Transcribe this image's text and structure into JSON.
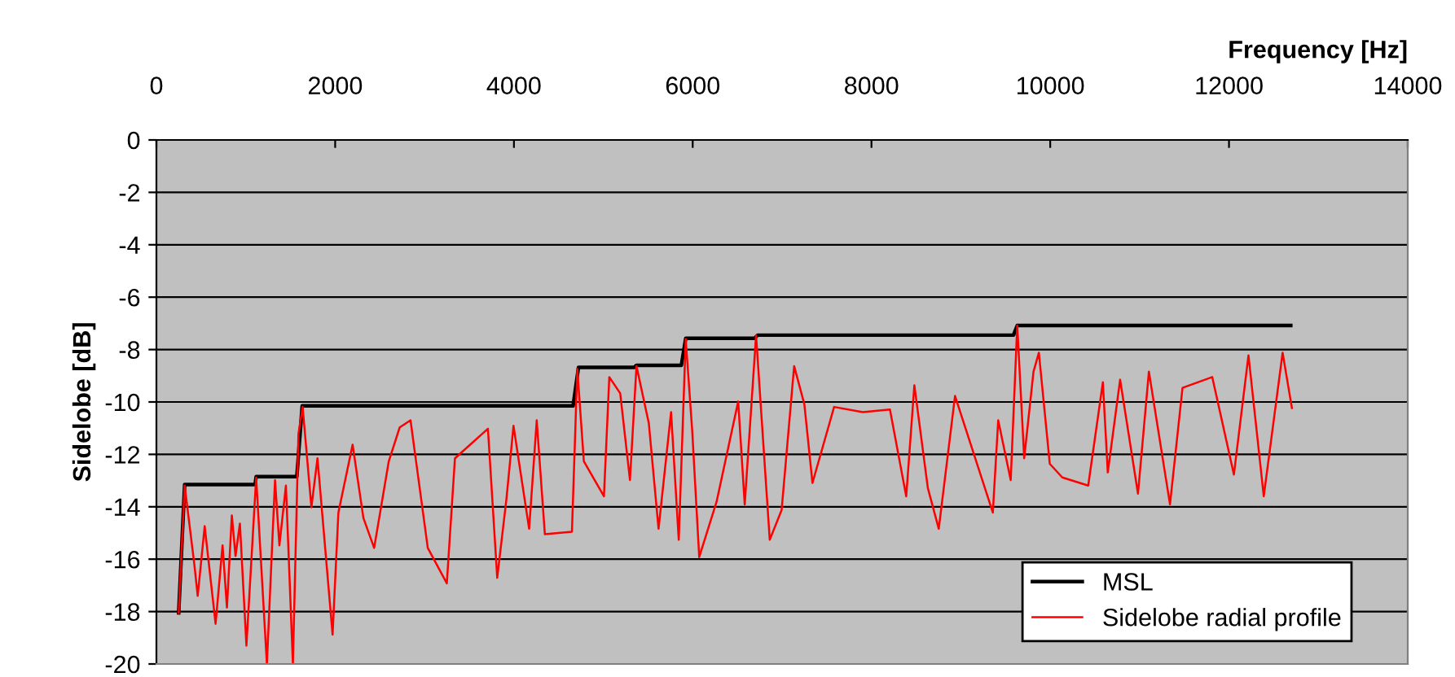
{
  "chart_data": {
    "type": "line",
    "xlabel": "Frequency [Hz]",
    "ylabel": "Sidelobe [dB]",
    "xlim": [
      0,
      14000
    ],
    "xticks": [
      0,
      2000,
      4000,
      6000,
      8000,
      10000,
      12000,
      14000
    ],
    "ylim": [
      -20,
      0
    ],
    "yticks": [
      0,
      -2,
      -4,
      -6,
      -8,
      -10,
      -12,
      -14,
      -16,
      -18,
      -20
    ],
    "grid": "y",
    "legend": "bottom right",
    "series": [
      {
        "name": "MSL",
        "color": "#000000",
        "x": [
          249,
          316,
          1104,
          1116,
          1571,
          1631,
          4662,
          4722,
          5345,
          5371,
          5873,
          5922,
          6691,
          6727,
          9589,
          9631,
          12691
        ],
        "values": [
          -18.05,
          -13.15,
          -13.15,
          -12.85,
          -12.85,
          -10.15,
          -10.15,
          -8.68,
          -8.68,
          -8.6,
          -8.6,
          -7.57,
          -7.57,
          -7.45,
          -7.45,
          -7.08,
          -7.08
        ]
      },
      {
        "name": "Sidelobe radial profile",
        "color": "#ff0000",
        "x": [
          249,
          316,
          424,
          462,
          540,
          662,
          740,
          789,
          844,
          885,
          934,
          1007,
          1116,
          1236,
          1327,
          1376,
          1449,
          1527,
          1589,
          1636,
          1734,
          1802,
          1971,
          2036,
          2195,
          2316,
          2436,
          2600,
          2722,
          2843,
          3036,
          3249,
          3340,
          3709,
          3813,
          3916,
          3995,
          4170,
          4255,
          4346,
          4649,
          4709,
          4782,
          5007,
          5067,
          5189,
          5298,
          5371,
          5509,
          5618,
          5758,
          5844,
          5922,
          5995,
          6073,
          6267,
          6509,
          6582,
          6709,
          6862,
          6995,
          7135,
          7249,
          7340,
          7582,
          7904,
          8207,
          8389,
          8480,
          8631,
          8753,
          8935,
          9358,
          9418,
          9558,
          9631,
          9709,
          9813,
          9873,
          9995,
          10135,
          10425,
          10589,
          10644,
          10782,
          10982,
          11104,
          11340,
          11480,
          11813,
          12055,
          12218,
          12389,
          12600,
          12704
        ],
        "values": [
          -18.05,
          -13.19,
          -16.19,
          -17.4,
          -14.74,
          -18.47,
          -15.47,
          -17.85,
          -14.33,
          -15.88,
          -14.64,
          -19.3,
          -12.88,
          -20,
          -12.98,
          -15.47,
          -13.19,
          -20,
          -11.22,
          -10.19,
          -14.02,
          -12.15,
          -18.88,
          -14.22,
          -11.63,
          -14.43,
          -15.57,
          -12.26,
          -10.97,
          -10.7,
          -15.57,
          -16.92,
          -12.15,
          -11.02,
          -16.71,
          -13.71,
          -10.91,
          -14.84,
          -10.7,
          -15.05,
          -14.95,
          -8.74,
          -12.26,
          -13.6,
          -9.05,
          -9.67,
          -12.98,
          -8.63,
          -10.81,
          -14.84,
          -10.39,
          -15.26,
          -7.6,
          -11.12,
          -15.92,
          -13.81,
          -9.98,
          -13.91,
          -7.45,
          -15.26,
          -14.12,
          -8.63,
          -10.08,
          -13.09,
          -10.19,
          -10.39,
          -10.29,
          -13.6,
          -9.36,
          -13.29,
          -14.84,
          -9.77,
          -14.22,
          -10.7,
          -12.98,
          -7.08,
          -12.15,
          -8.84,
          -8.12,
          -12.36,
          -12.88,
          -13.19,
          -9.25,
          -12.69,
          -9.15,
          -13.5,
          -8.84,
          -13.91,
          -9.46,
          -9.05,
          -12.77,
          -8.22,
          -13.6,
          -8.12,
          -10.23
        ]
      }
    ]
  }
}
